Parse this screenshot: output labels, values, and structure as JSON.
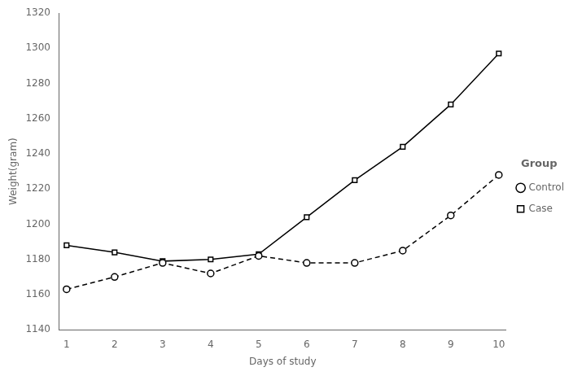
{
  "chart_data": {
    "type": "line",
    "x_label": "Days of study",
    "y_label": "Weight(gram)",
    "x": [
      1,
      2,
      3,
      4,
      5,
      6,
      7,
      8,
      9,
      10
    ],
    "series": [
      {
        "name": "Control",
        "color": "#000000",
        "marker": "circle",
        "line_style": "dashed",
        "values": [
          1163,
          1170,
          1178,
          1172,
          1182,
          1178,
          1178,
          1185,
          1205,
          1228
        ]
      },
      {
        "name": "Case",
        "color": "#000000",
        "marker": "square",
        "line_style": "solid",
        "values": [
          1188,
          1184,
          1179,
          1180,
          1183,
          1204,
          1225,
          1244,
          1268,
          1297
        ]
      }
    ],
    "legend_title": "Group",
    "legend": "right",
    "xlim": [
      0.85,
      10.15
    ],
    "xticks": [
      1,
      2,
      3,
      4,
      5,
      6,
      7,
      8,
      9,
      10
    ],
    "ylim": [
      1140,
      1320
    ],
    "yticks": [
      1140,
      1160,
      1180,
      1200,
      1220,
      1240,
      1260,
      1280,
      1300,
      1320
    ],
    "grid": false
  }
}
